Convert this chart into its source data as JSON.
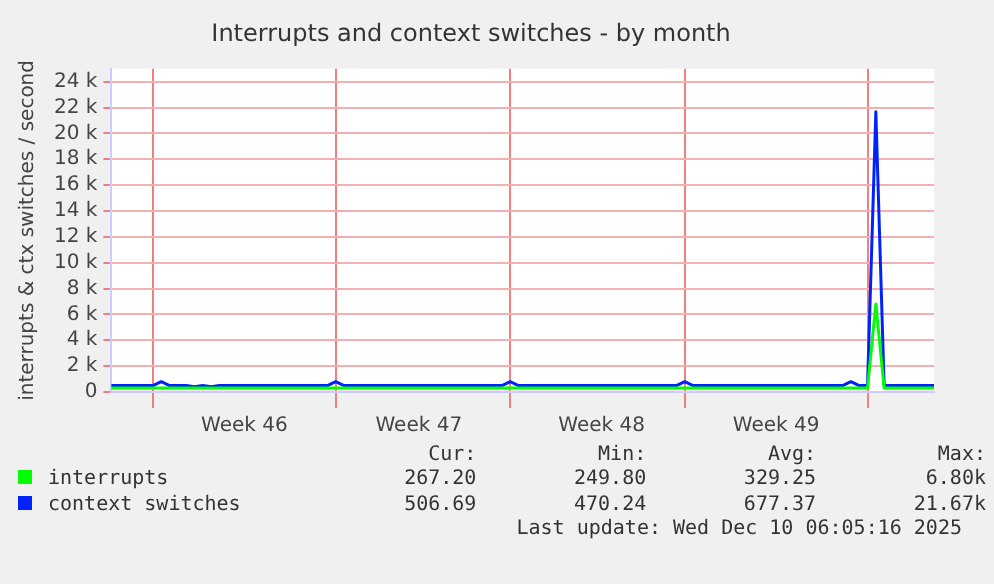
{
  "chart_data": {
    "type": "line",
    "title": "Interrupts and context switches - by month",
    "ylabel": "interrupts & ctx switches / second",
    "categories": [
      null,
      null,
      null,
      null,
      null,
      null,
      null,
      null,
      null,
      null,
      null,
      null,
      null,
      null,
      null,
      null,
      "Week 46",
      null,
      null,
      null,
      null,
      null,
      null,
      null,
      null,
      null,
      null,
      null,
      null,
      null,
      null,
      null,
      null,
      null,
      null,
      null,
      null,
      "Week 47",
      null,
      null,
      null,
      null,
      null,
      null,
      null,
      null,
      null,
      null,
      null,
      null,
      null,
      null,
      null,
      null,
      null,
      null,
      null,
      null,
      null,
      "Week 48",
      null,
      null,
      null,
      null,
      null,
      null,
      null,
      null,
      null,
      null,
      null,
      null,
      null,
      null,
      null,
      null,
      null,
      null,
      null,
      null,
      "Week 49",
      null,
      null,
      null,
      null,
      null,
      null,
      null,
      null,
      null,
      null,
      null,
      null,
      null,
      null,
      null,
      null,
      null,
      null,
      null
    ],
    "ylim": [
      0,
      25000
    ],
    "yticks": [
      0,
      {
        "value": 2000,
        "label": "2 k"
      },
      {
        "value": 4000,
        "label": "4 k"
      },
      {
        "value": 6000,
        "label": "6 k"
      },
      {
        "value": 8000,
        "label": "8 k"
      },
      {
        "value": 10000,
        "label": "10 k"
      },
      {
        "value": 12000,
        "label": "12 k"
      },
      {
        "value": 14000,
        "label": "14 k"
      },
      {
        "value": 16000,
        "label": "16 k"
      },
      {
        "value": 18000,
        "label": "18 k"
      },
      {
        "value": 20000,
        "label": "20 k"
      },
      {
        "value": 22000,
        "label": "22 k"
      },
      {
        "value": 24000,
        "label": "24 k"
      }
    ],
    "grid": true,
    "legend": "bottom",
    "marker": "none",
    "line_style": "solid",
    "series": [
      {
        "name": "interrupts",
        "color": "#00ff00",
        "values": [
          300,
          300,
          300,
          300,
          300,
          300,
          300,
          300,
          300,
          300,
          300,
          300,
          300,
          300,
          300,
          300,
          300,
          300,
          300,
          300,
          300,
          300,
          300,
          300,
          300,
          300,
          300,
          300,
          300,
          300,
          300,
          300,
          300,
          300,
          300,
          300,
          300,
          300,
          300,
          300,
          300,
          300,
          300,
          300,
          300,
          300,
          300,
          300,
          300,
          300,
          300,
          300,
          300,
          300,
          300,
          300,
          300,
          300,
          300,
          300,
          300,
          300,
          300,
          300,
          300,
          300,
          300,
          300,
          300,
          300,
          300,
          300,
          300,
          300,
          300,
          300,
          300,
          300,
          300,
          300,
          300,
          300,
          300,
          300,
          300,
          300,
          300,
          300,
          300,
          300,
          300,
          300,
          6800,
          300,
          300,
          300,
          300,
          300,
          300,
          300
        ]
      },
      {
        "name": "context switches",
        "color": "#0022ff",
        "values": [
          500,
          500,
          500,
          500,
          500,
          500,
          800,
          500,
          500,
          500,
          400,
          500,
          400,
          500,
          500,
          500,
          500,
          500,
          500,
          500,
          500,
          500,
          500,
          500,
          500,
          500,
          500,
          800,
          500,
          500,
          500,
          500,
          500,
          500,
          500,
          500,
          500,
          500,
          500,
          500,
          500,
          500,
          500,
          500,
          500,
          500,
          500,
          500,
          800,
          500,
          500,
          500,
          500,
          500,
          500,
          500,
          500,
          500,
          500,
          500,
          500,
          500,
          500,
          500,
          500,
          500,
          500,
          500,
          500,
          800,
          500,
          500,
          500,
          500,
          500,
          500,
          500,
          500,
          500,
          500,
          500,
          500,
          500,
          500,
          500,
          500,
          500,
          500,
          500,
          800,
          500,
          500,
          21670,
          500,
          500,
          500,
          500,
          500,
          500,
          500
        ]
      }
    ],
    "annotations": [
      "Cur:",
      "Min:",
      "Avg:",
      "Max:",
      "267.20",
      "249.80",
      "329.25",
      "6.80k",
      "506.69",
      "470.24",
      "677.37",
      "21.67k",
      "Last update: Wed Dec 10 06:05:16 2025"
    ]
  }
}
